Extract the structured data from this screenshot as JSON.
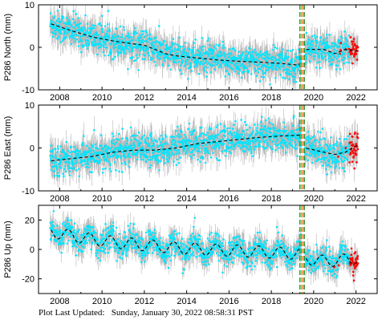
{
  "footer": {
    "label": "Plot Last Updated:",
    "timestamp": "Sunday, January 30, 2022 08:58:31 PST"
  },
  "colors": {
    "errorbar": "#b8b8b8",
    "points": "#00e5ff",
    "recent_points": "#ff0000",
    "trend": "#000000",
    "event_line_1": "#22aa22",
    "event_line_2": "#ff6600",
    "event_line_3": "#228822"
  },
  "chart_data": [
    {
      "type": "scatter",
      "ylabel": "P286 North (mm)",
      "xlim": [
        2007.0,
        2023.0
      ],
      "ylim": [
        -10,
        10
      ],
      "yticks": [
        -10,
        0,
        10
      ],
      "xticks": [
        2008,
        2010,
        2012,
        2014,
        2016,
        2018,
        2020,
        2022
      ],
      "event_lines": [
        2019.35,
        2019.45,
        2019.55
      ],
      "trend": {
        "x": [
          2007.6,
          2008.5,
          2009.5,
          2010.5,
          2011.5,
          2012.0,
          2012.5,
          2013.0,
          2013.5,
          2014.5,
          2015.5,
          2016.5,
          2017.5,
          2018.5,
          2019.3,
          2019.6,
          2020.5,
          2021.0,
          2021.5,
          2022.0
        ],
        "y": [
          5.5,
          4.0,
          2.5,
          1.5,
          0.8,
          0.5,
          -0.5,
          -1.5,
          -2.0,
          -2.5,
          -3.0,
          -3.3,
          -3.5,
          -3.8,
          -4.2,
          -0.5,
          -0.5,
          -1.5,
          -0.5,
          -0.8
        ]
      },
      "noise": 1.8,
      "errorbar_size": 2.2
    },
    {
      "type": "scatter",
      "ylabel": "P286 East (mm)",
      "xlim": [
        2007.0,
        2023.0
      ],
      "ylim": [
        -10,
        10
      ],
      "yticks": [
        -10,
        0,
        10
      ],
      "xticks": [
        2008,
        2010,
        2012,
        2014,
        2016,
        2018,
        2020,
        2022
      ],
      "event_lines": [
        2019.35,
        2019.45,
        2019.55
      ],
      "trend": {
        "x": [
          2007.6,
          2008.5,
          2009.5,
          2010.5,
          2011.5,
          2012.5,
          2013.5,
          2014.5,
          2015.5,
          2016.5,
          2017.5,
          2018.5,
          2019.3,
          2019.6,
          2020.5,
          2021.0,
          2021.5,
          2022.0
        ],
        "y": [
          -3.0,
          -2.5,
          -2.0,
          -1.0,
          -0.5,
          -0.5,
          0.0,
          1.0,
          1.5,
          2.0,
          2.5,
          2.8,
          3.0,
          0.0,
          -1.0,
          -1.5,
          -1.0,
          0.5
        ]
      },
      "noise": 1.8,
      "errorbar_size": 2.2
    },
    {
      "type": "scatter",
      "ylabel": "P286 Up (mm)",
      "xlim": [
        2007.0,
        2023.0
      ],
      "ylim": [
        -30,
        30
      ],
      "yticks": [
        -20,
        0,
        20
      ],
      "xticks": [
        2008,
        2010,
        2012,
        2014,
        2016,
        2018,
        2020,
        2022
      ],
      "event_lines": [
        2019.35,
        2019.45,
        2019.55
      ],
      "trend": {
        "x": [
          2007.6,
          2009.0,
          2010.5,
          2012.0,
          2013.5,
          2015.0,
          2016.5,
          2018.0,
          2019.3,
          2019.6,
          2020.5,
          2021.5,
          2022.0
        ],
        "y": [
          12.0,
          8.0,
          5.0,
          3.0,
          1.0,
          0.0,
          -1.0,
          -2.0,
          -3.0,
          -6.0,
          -8.0,
          -7.0,
          -6.0
        ]
      },
      "seasonal_amplitude": 4.0,
      "noise": 4.5,
      "errorbar_size": 5.5
    }
  ]
}
